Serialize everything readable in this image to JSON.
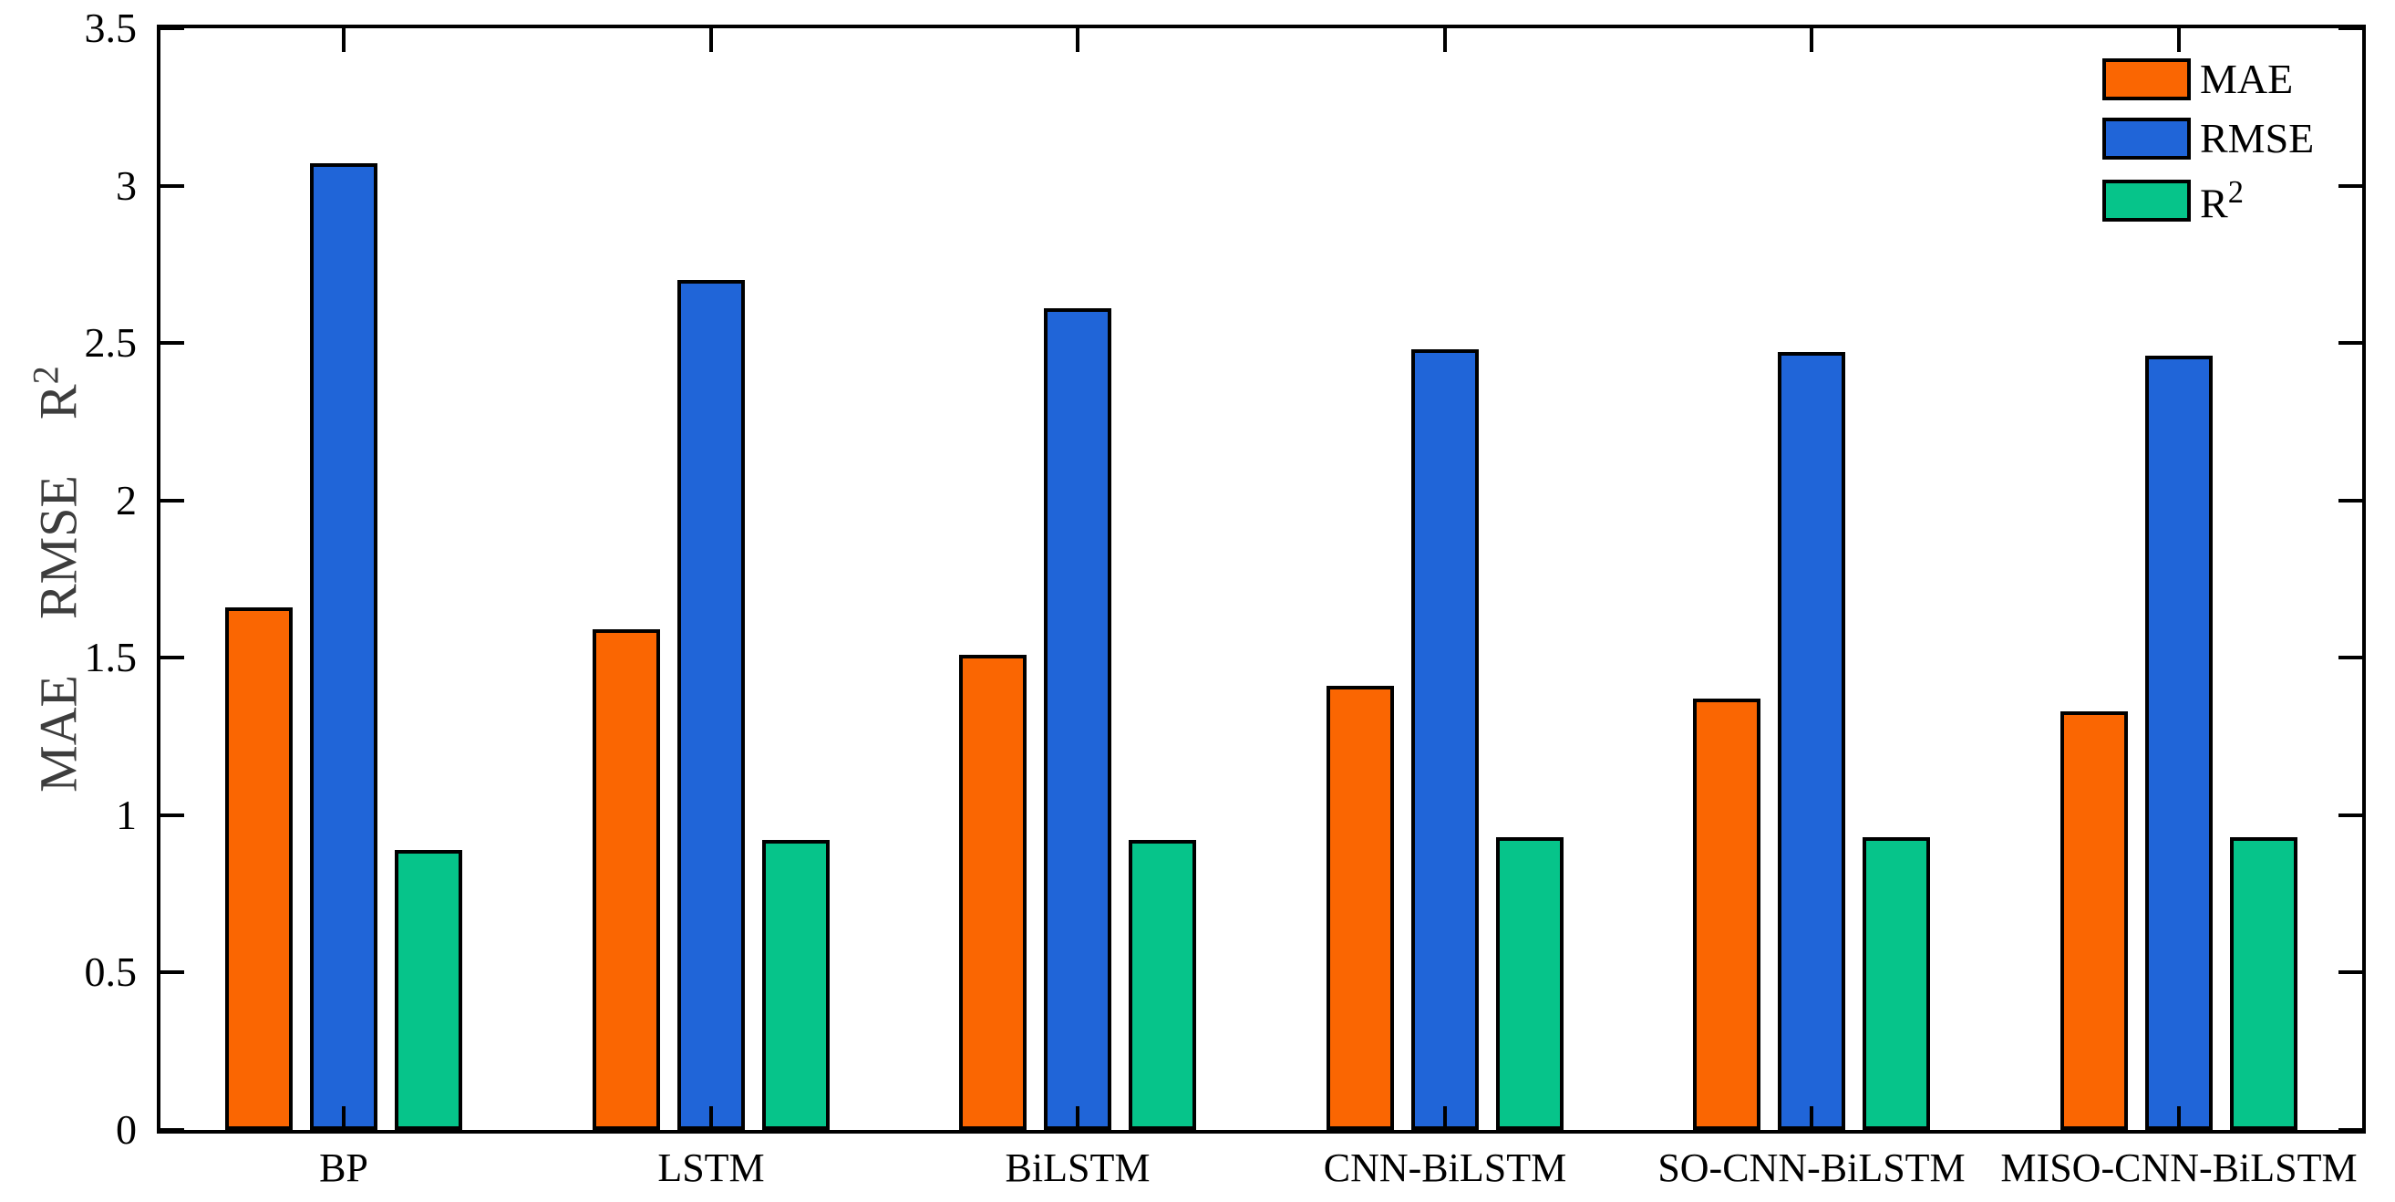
{
  "figure": {
    "background": "#ffffff",
    "axis_color": "#000000",
    "ylabel_color": "#3d3d3d"
  },
  "chart_data": {
    "type": "bar",
    "title": "",
    "categories": [
      "BP",
      "LSTM",
      "BiLSTM",
      "CNN-BiLSTM",
      "SO-CNN-BiLSTM",
      "MISO-CNN-BiLSTM"
    ],
    "series": [
      {
        "name": "MAE",
        "label": "MAE",
        "sup": "",
        "color": "#FA6602",
        "values": [
          1.66,
          1.59,
          1.51,
          1.41,
          1.37,
          1.33
        ]
      },
      {
        "name": "RMSE",
        "label": "RMSE",
        "sup": "",
        "color": "#2065D8",
        "values": [
          3.07,
          2.7,
          2.61,
          2.48,
          2.47,
          2.46
        ]
      },
      {
        "name": "R2",
        "label": "R",
        "sup": "2",
        "color": "#06C48A",
        "values": [
          0.89,
          0.92,
          0.92,
          0.93,
          0.93,
          0.93
        ]
      }
    ],
    "ylabel": {
      "text": "MAE  RMSE  R",
      "sup": "2"
    },
    "xlabel": "",
    "ylim": [
      0,
      3.5
    ],
    "yticks": [
      0,
      0.5,
      1,
      1.5,
      2,
      2.5,
      3,
      3.5
    ],
    "ytick_labels": [
      "0",
      "0.5",
      "1",
      "1.5",
      "2",
      "2.5",
      "3",
      "3.5"
    ],
    "grid": false,
    "legend_position": "top-right",
    "bar_edge_color": "#000000"
  },
  "legend": {
    "entries": [
      {
        "label": "MAE",
        "sup": ""
      },
      {
        "label": "RMSE",
        "sup": ""
      },
      {
        "label": "R",
        "sup": "2"
      }
    ]
  }
}
